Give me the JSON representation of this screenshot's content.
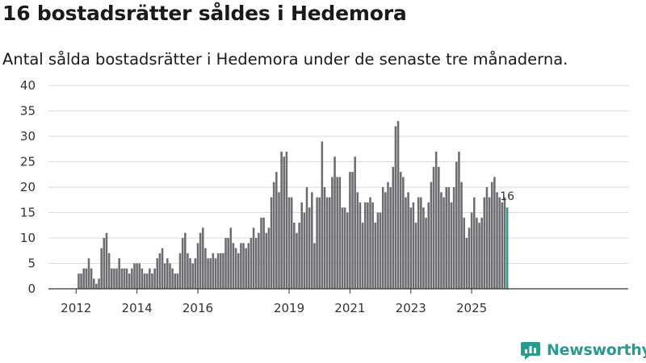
{
  "chart_data": {
    "type": "bar",
    "title": "16 bostadsrätter såldes i Hedemora",
    "subtitle": "Antal sålda bostadsrätter i Hedemora under de senaste tre månaderna.",
    "xlabel": "",
    "ylabel": "",
    "ylim": [
      0,
      40
    ],
    "yticks": [
      0,
      5,
      10,
      15,
      20,
      25,
      30,
      35,
      40
    ],
    "xticks": [
      {
        "label": "2012",
        "index": 0
      },
      {
        "label": "2014",
        "index": 24
      },
      {
        "label": "2016",
        "index": 48
      },
      {
        "label": "2019",
        "index": 84
      },
      {
        "label": "2021",
        "index": 108
      },
      {
        "label": "2023",
        "index": 132
      },
      {
        "label": "2025",
        "index": 156
      }
    ],
    "grid": true,
    "bar_color": "#6d6c71",
    "highlight_color": "#2a9a8e",
    "highlight_label": "16",
    "first_period": "2012-01",
    "values": [
      0,
      3,
      3,
      4,
      4,
      6,
      4,
      2,
      1,
      2,
      8,
      10,
      11,
      7,
      4,
      4,
      4,
      6,
      4,
      4,
      4,
      3,
      4,
      5,
      5,
      5,
      4,
      3,
      3,
      4,
      3,
      4,
      6,
      7,
      8,
      5,
      6,
      5,
      4,
      3,
      3,
      7,
      10,
      11,
      7,
      6,
      5,
      6,
      9,
      11,
      12,
      8,
      6,
      6,
      7,
      6,
      7,
      7,
      7,
      10,
      10,
      12,
      9,
      8,
      7,
      9,
      9,
      8,
      9,
      10,
      12,
      10,
      11,
      14,
      14,
      11,
      12,
      18,
      21,
      23,
      19,
      27,
      26,
      27,
      18,
      18,
      13,
      11,
      13,
      17,
      15,
      20,
      16,
      19,
      9,
      18,
      18,
      29,
      20,
      18,
      18,
      22,
      26,
      22,
      22,
      16,
      16,
      15,
      23,
      23,
      26,
      19,
      17,
      13,
      17,
      17,
      18,
      17,
      13,
      15,
      15,
      20,
      19,
      21,
      20,
      24,
      32,
      33,
      23,
      22,
      18,
      19,
      16,
      17,
      13,
      18,
      18,
      16,
      14,
      17,
      21,
      24,
      27,
      24,
      19,
      18,
      20,
      20,
      17,
      20,
      25,
      27,
      21,
      14,
      10,
      12,
      15,
      18,
      14,
      13,
      14,
      18,
      20,
      18,
      21,
      22,
      19,
      18,
      17,
      18,
      16
    ]
  },
  "brand": {
    "name": "Newsworthy",
    "logo_icon": "newsworthy-logo-icon"
  }
}
